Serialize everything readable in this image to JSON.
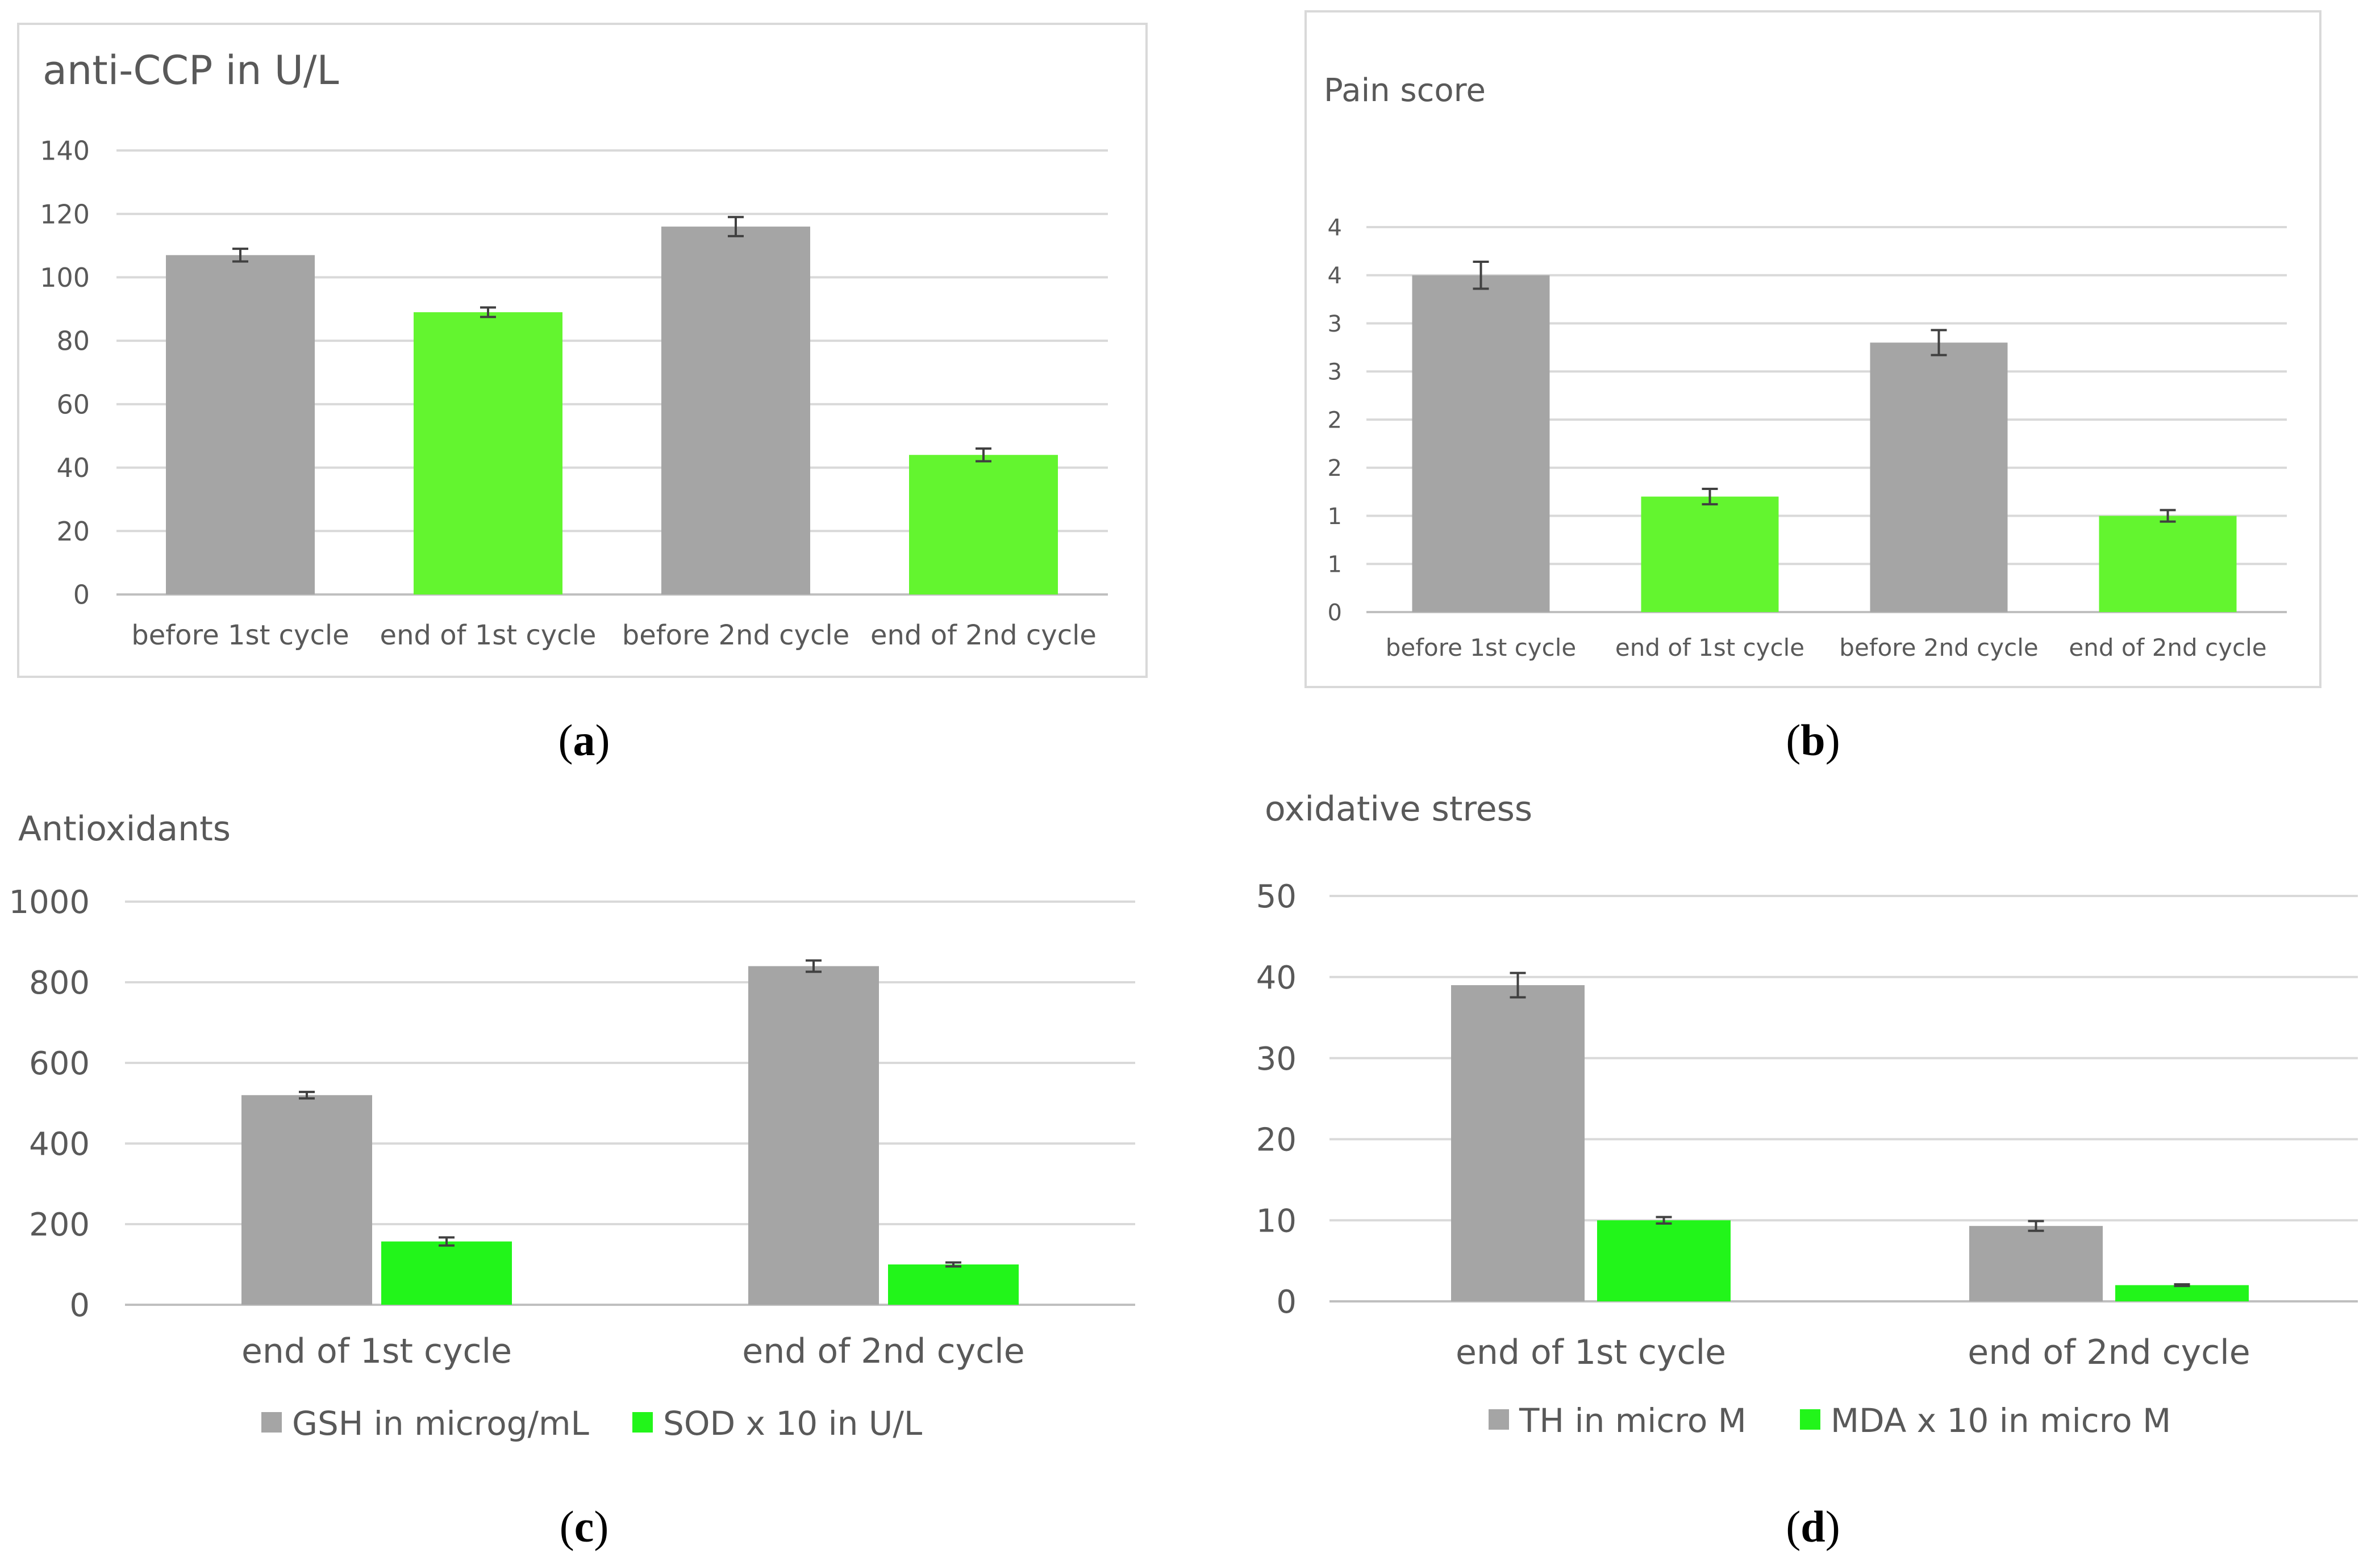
{
  "colors": {
    "gray": "#a5a5a5",
    "green": "#63f52f",
    "green_bright": "#22f51a"
  },
  "chart_data": [
    {
      "id": "a",
      "type": "bar",
      "title": "anti-CCP in U/L",
      "caption": "a",
      "categories": [
        "before 1st cycle",
        "end of 1st cycle",
        "before 2nd cycle",
        "end of 2nd cycle"
      ],
      "values": [
        107,
        89,
        116,
        44
      ],
      "errors": [
        2,
        1.5,
        3,
        2
      ],
      "bar_colors": [
        "gray",
        "green",
        "gray",
        "green"
      ],
      "yticks": [
        0,
        20,
        40,
        60,
        80,
        100,
        120,
        140
      ],
      "ylim": [
        0,
        140
      ]
    },
    {
      "id": "b",
      "type": "bar",
      "title": "Pain score",
      "caption": "b",
      "categories": [
        "before 1st cycle",
        "end of 1st cycle",
        "before 2nd cycle",
        "end of 2nd cycle"
      ],
      "values": [
        3.5,
        1.2,
        2.8,
        1.0
      ],
      "errors": [
        0.14,
        0.08,
        0.13,
        0.06
      ],
      "bar_colors": [
        "gray",
        "green",
        "gray",
        "green"
      ],
      "ytick_labels": [
        "0",
        "1",
        "1",
        "2",
        "2",
        "3",
        "3",
        "4",
        "4"
      ],
      "ylim": [
        0,
        4
      ]
    },
    {
      "id": "c",
      "type": "bar",
      "title": "Antioxidants",
      "caption": "c",
      "categories": [
        "end of 1st cycle",
        "end of 2nd cycle"
      ],
      "series": [
        {
          "name": "GSH in microg/mL",
          "color": "gray",
          "values": [
            520,
            840
          ],
          "errors": [
            8,
            14
          ]
        },
        {
          "name": "SOD x 10 in U/L",
          "color": "green_bright",
          "values": [
            157,
            100
          ],
          "errors": [
            10,
            5
          ]
        }
      ],
      "yticks": [
        0,
        200,
        400,
        600,
        800,
        1000
      ],
      "ylim": [
        0,
        1000
      ],
      "legend": "bottom"
    },
    {
      "id": "d",
      "type": "bar",
      "title": "oxidative stress",
      "caption": "d",
      "categories": [
        "end of 1st cycle",
        "end of 2nd cycle"
      ],
      "series": [
        {
          "name": "TH in micro M",
          "color": "gray",
          "values": [
            39,
            9.3
          ],
          "errors": [
            1.5,
            0.6
          ]
        },
        {
          "name": "MDA x 10 in micro M",
          "color": "green_bright",
          "values": [
            10,
            2
          ],
          "errors": [
            0.4,
            0.1
          ]
        }
      ],
      "yticks": [
        0,
        10,
        20,
        30,
        40,
        50
      ],
      "ylim": [
        0,
        50
      ],
      "legend": "bottom"
    }
  ]
}
